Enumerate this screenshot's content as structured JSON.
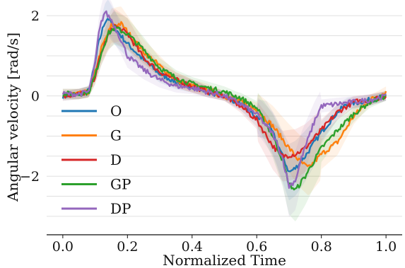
{
  "chart_data": {
    "type": "line",
    "title": "",
    "xlabel": "Normalized Time",
    "ylabel": "Angular velocity [rad/s]",
    "xlim": [
      -0.05,
      1.05
    ],
    "ylim": [
      -3.3,
      2.25
    ],
    "xticks": [
      0.0,
      0.2,
      0.4,
      0.6,
      0.8,
      1.0
    ],
    "xtick_labels": [
      "0.0",
      "0.2",
      "0.4",
      "0.6",
      "0.8",
      "1.0"
    ],
    "yticks": [
      -2,
      0,
      2
    ],
    "ytick_labels": [
      "−2",
      "0",
      "2"
    ],
    "grid": "horizontal",
    "legend_position": "lower-left",
    "shaded_bands": true,
    "series": [
      {
        "name": "O",
        "color": "#1f77b4",
        "x": [
          0,
          0.05,
          0.08,
          0.1,
          0.11,
          0.13,
          0.14,
          0.16,
          0.18,
          0.2,
          0.25,
          0.3,
          0.35,
          0.4,
          0.45,
          0.5,
          0.55,
          0.6,
          0.63,
          0.66,
          0.7,
          0.72,
          0.75,
          0.8,
          0.85,
          0.88,
          0.92,
          0.95,
          1.0
        ],
        "y": [
          0,
          0.05,
          0.12,
          0.8,
          1.3,
          1.85,
          1.95,
          1.7,
          1.5,
          1.3,
          0.9,
          0.55,
          0.35,
          0.25,
          0.1,
          0.0,
          -0.2,
          -0.55,
          -0.6,
          -1.1,
          -1.9,
          -1.8,
          -1.5,
          -0.9,
          -0.4,
          -0.2,
          -0.15,
          -0.1,
          0.0
        ]
      },
      {
        "name": "G",
        "color": "#ff7f0e",
        "x": [
          0,
          0.05,
          0.08,
          0.1,
          0.12,
          0.15,
          0.18,
          0.2,
          0.25,
          0.3,
          0.35,
          0.4,
          0.45,
          0.5,
          0.55,
          0.6,
          0.65,
          0.7,
          0.73,
          0.76,
          0.8,
          0.85,
          0.9,
          0.95,
          1.0
        ],
        "y": [
          0.05,
          0.05,
          0.1,
          0.6,
          1.2,
          1.75,
          1.8,
          1.6,
          1.1,
          0.75,
          0.4,
          0.25,
          0.15,
          0.0,
          -0.15,
          -0.35,
          -0.75,
          -1.3,
          -1.6,
          -1.8,
          -1.45,
          -1.15,
          -0.5,
          -0.1,
          0.1
        ]
      },
      {
        "name": "D",
        "color": "#d62728",
        "x": [
          0,
          0.05,
          0.08,
          0.1,
          0.12,
          0.14,
          0.16,
          0.2,
          0.25,
          0.3,
          0.35,
          0.4,
          0.45,
          0.5,
          0.55,
          0.6,
          0.65,
          0.68,
          0.72,
          0.75,
          0.8,
          0.85,
          0.9,
          0.95,
          1.0
        ],
        "y": [
          0.0,
          0.05,
          0.1,
          0.5,
          1.1,
          1.5,
          1.75,
          1.55,
          0.95,
          0.6,
          0.4,
          0.25,
          0.1,
          0.0,
          -0.25,
          -0.6,
          -1.25,
          -1.5,
          -1.45,
          -1.3,
          -0.85,
          -0.4,
          -0.15,
          -0.1,
          0.0
        ]
      },
      {
        "name": "GP",
        "color": "#2ca02c",
        "x": [
          0,
          0.05,
          0.08,
          0.1,
          0.12,
          0.14,
          0.16,
          0.2,
          0.25,
          0.3,
          0.35,
          0.4,
          0.45,
          0.5,
          0.55,
          0.6,
          0.65,
          0.68,
          0.7,
          0.72,
          0.75,
          0.8,
          0.85,
          0.9,
          0.95,
          1.0
        ],
        "y": [
          0.05,
          0.05,
          0.1,
          0.5,
          1.1,
          1.55,
          1.7,
          1.55,
          1.15,
          0.7,
          0.45,
          0.3,
          0.2,
          0.1,
          -0.05,
          -0.3,
          -1.0,
          -1.6,
          -2.2,
          -2.35,
          -2.0,
          -1.3,
          -0.85,
          -0.45,
          -0.15,
          0.0
        ]
      },
      {
        "name": "DP",
        "color": "#9467bd",
        "x": [
          0,
          0.05,
          0.08,
          0.1,
          0.11,
          0.12,
          0.13,
          0.15,
          0.18,
          0.2,
          0.25,
          0.3,
          0.35,
          0.4,
          0.45,
          0.5,
          0.55,
          0.6,
          0.65,
          0.68,
          0.7,
          0.72,
          0.74,
          0.78,
          0.8,
          0.85,
          0.9,
          0.95,
          1.0
        ],
        "y": [
          0.05,
          0.05,
          0.1,
          0.8,
          1.5,
          1.85,
          2.1,
          1.9,
          1.4,
          1.0,
          0.65,
          0.4,
          0.25,
          0.2,
          0.1,
          0.0,
          -0.2,
          -0.45,
          -0.95,
          -1.55,
          -2.25,
          -2.1,
          -1.5,
          -0.6,
          -0.25,
          -0.2,
          -0.15,
          -0.1,
          0.0
        ]
      }
    ]
  }
}
